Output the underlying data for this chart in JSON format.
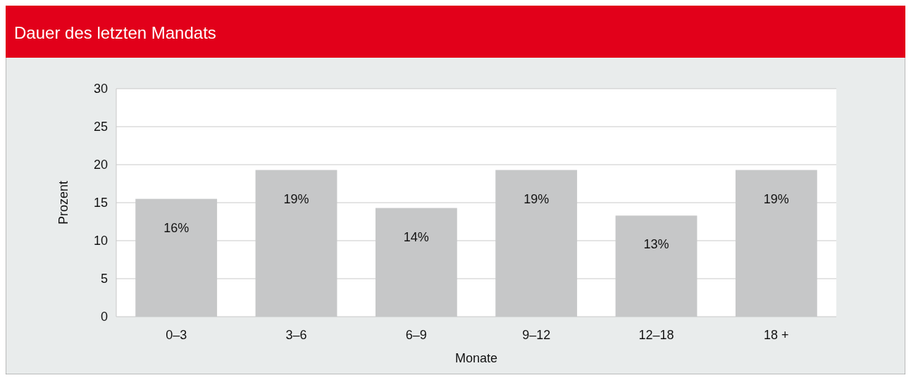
{
  "chart_data": {
    "type": "bar",
    "title": "Dauer des letzten Mandats",
    "xlabel": "Monate",
    "ylabel": "Prozent",
    "categories": [
      "0–3",
      "3–6",
      "6–9",
      "9–12",
      "12–18",
      "18 +"
    ],
    "values": [
      15.5,
      19.3,
      14.3,
      19.3,
      13.3,
      19.3
    ],
    "value_labels": [
      "16%",
      "19%",
      "14%",
      "19%",
      "13%",
      "19%"
    ],
    "color": "#c6c7c8",
    "ylim": [
      0,
      30
    ],
    "yticks": [
      0,
      5,
      10,
      15,
      20,
      25,
      30
    ],
    "grid": "y"
  }
}
